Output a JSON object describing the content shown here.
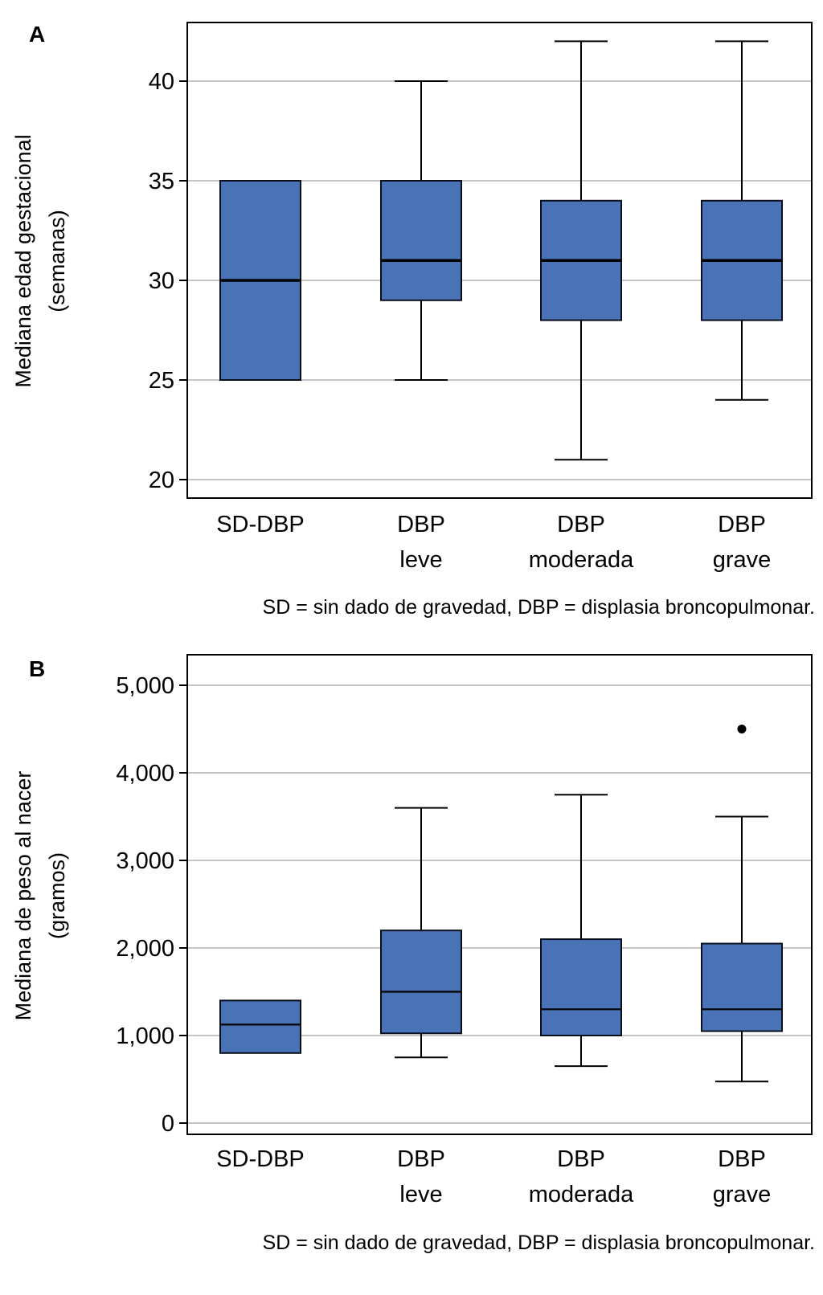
{
  "chart_data": [
    {
      "type": "boxplot",
      "panel": "A",
      "title": "",
      "ylabel": [
        "Mediana edad gestacional",
        "(semanas)"
      ],
      "xlabel": "",
      "ylim": [
        19,
        43
      ],
      "yticks": [
        20,
        25,
        30,
        35,
        40
      ],
      "ytick_labels": [
        "20",
        "25",
        "30",
        "35",
        "40"
      ],
      "grid": "horizontal",
      "categories": [
        [
          "SD-DBP"
        ],
        [
          "DBP",
          "leve"
        ],
        [
          "DBP",
          "moderada"
        ],
        [
          "DBP",
          "grave"
        ]
      ],
      "boxes": [
        {
          "name": "SD-DBP",
          "whisker_low": 25,
          "q1": 25,
          "median": 30,
          "q3": 35,
          "whisker_high": 35,
          "outliers": []
        },
        {
          "name": "DBP leve",
          "whisker_low": 25,
          "q1": 29,
          "median": 31,
          "q3": 35,
          "whisker_high": 40,
          "outliers": []
        },
        {
          "name": "DBP moderada",
          "whisker_low": 21,
          "q1": 28,
          "median": 31,
          "q3": 34,
          "whisker_high": 42,
          "outliers": []
        },
        {
          "name": "DBP grave",
          "whisker_low": 24,
          "q1": 28,
          "median": 31,
          "q3": 34,
          "whisker_high": 42,
          "outliers": []
        }
      ],
      "note": "SD = sin dado de gravedad, DBP = displasia broncopulmonar.",
      "box_color": "#4a72b6"
    },
    {
      "type": "boxplot",
      "panel": "B",
      "title": "",
      "ylabel": [
        "Mediana de peso al nacer",
        "(gramos)"
      ],
      "xlabel": "",
      "ylim": [
        -200,
        5200
      ],
      "yticks": [
        0,
        1000,
        2000,
        3000,
        4000,
        5000
      ],
      "ytick_labels": [
        "0",
        "1,000",
        "2,000",
        "3,000",
        "4,000",
        "5,000"
      ],
      "grid": "horizontal",
      "categories": [
        [
          "SD-DBP"
        ],
        [
          "DBP",
          "leve"
        ],
        [
          "DBP",
          "moderada"
        ],
        [
          "DBP",
          "grave"
        ]
      ],
      "boxes": [
        {
          "name": "SD-DBP",
          "whisker_low": 800,
          "q1": 800,
          "median": 1125,
          "q3": 1400,
          "whisker_high": 1400,
          "outliers": []
        },
        {
          "name": "DBP leve",
          "whisker_low": 750,
          "q1": 1025,
          "median": 1500,
          "q3": 2200,
          "whisker_high": 3600,
          "outliers": []
        },
        {
          "name": "DBP moderada",
          "whisker_low": 650,
          "q1": 1000,
          "median": 1300,
          "q3": 2100,
          "whisker_high": 3750,
          "outliers": []
        },
        {
          "name": "DBP grave",
          "whisker_low": 475,
          "q1": 1050,
          "median": 1300,
          "q3": 2050,
          "whisker_high": 3500,
          "outliers": [
            4500
          ]
        }
      ],
      "note": "SD = sin dado de gravedad, DBP = displasia broncopulmonar.",
      "box_color": "#4a72b6"
    }
  ]
}
